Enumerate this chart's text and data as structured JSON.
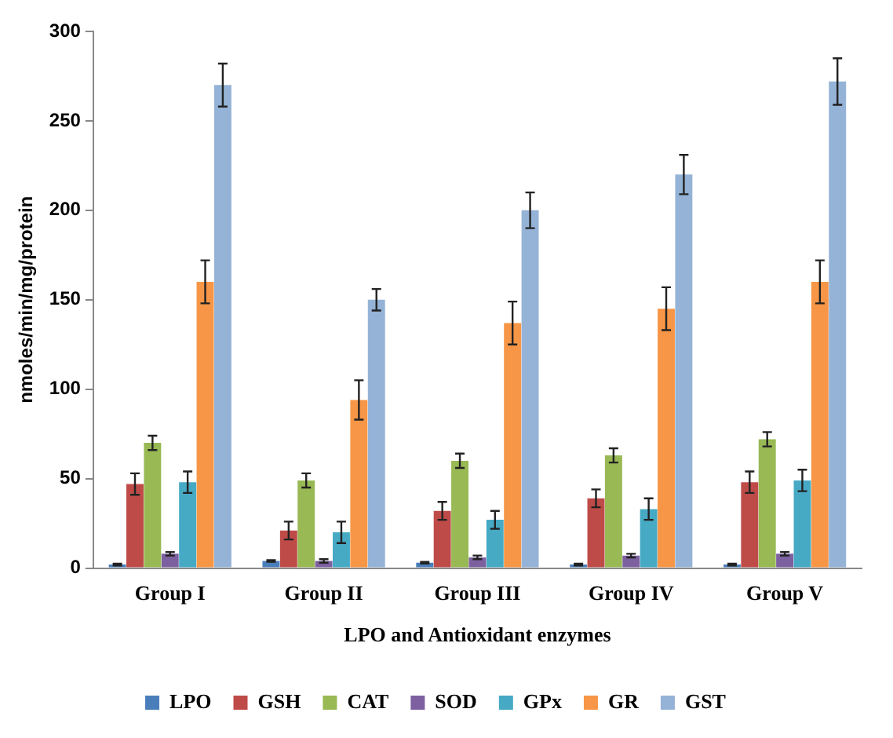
{
  "chart_data": {
    "type": "bar",
    "xlabel": "LPO and Antioxidant enzymes",
    "ylabel": "nmoles/min/mg/protein",
    "categories": [
      "Group I",
      "Group II",
      "Group III",
      "Group IV",
      "Group V"
    ],
    "series": [
      {
        "name": "LPO",
        "color": "#4a7ebb",
        "values": [
          2,
          4,
          3,
          2,
          2
        ],
        "errors": [
          0.5,
          0.5,
          0.5,
          0.5,
          0.5
        ]
      },
      {
        "name": "GSH",
        "color": "#be4b48",
        "values": [
          47,
          21,
          32,
          39,
          48
        ],
        "errors": [
          6,
          5,
          5,
          5,
          6
        ]
      },
      {
        "name": "CAT",
        "color": "#98b954",
        "values": [
          70,
          49,
          60,
          63,
          72
        ],
        "errors": [
          4,
          4,
          4,
          4,
          4
        ]
      },
      {
        "name": "SOD",
        "color": "#7d60a0",
        "values": [
          8,
          4,
          6,
          7,
          8
        ],
        "errors": [
          1,
          1,
          1,
          1,
          1
        ]
      },
      {
        "name": "GPx",
        "color": "#46aac5",
        "values": [
          48,
          20,
          27,
          33,
          49
        ],
        "errors": [
          6,
          6,
          5,
          6,
          6
        ]
      },
      {
        "name": "GR",
        "color": "#f79646",
        "values": [
          160,
          94,
          137,
          145,
          160
        ],
        "errors": [
          12,
          11,
          12,
          12,
          12
        ]
      },
      {
        "name": "GST",
        "color": "#95b3d7",
        "values": [
          270,
          150,
          200,
          220,
          272
        ],
        "errors": [
          12,
          6,
          10,
          11,
          13
        ]
      }
    ],
    "ylim": [
      0,
      300
    ],
    "yticks": [
      0,
      50,
      100,
      150,
      200,
      250,
      300
    ],
    "grid": false,
    "legend": "bottom"
  }
}
